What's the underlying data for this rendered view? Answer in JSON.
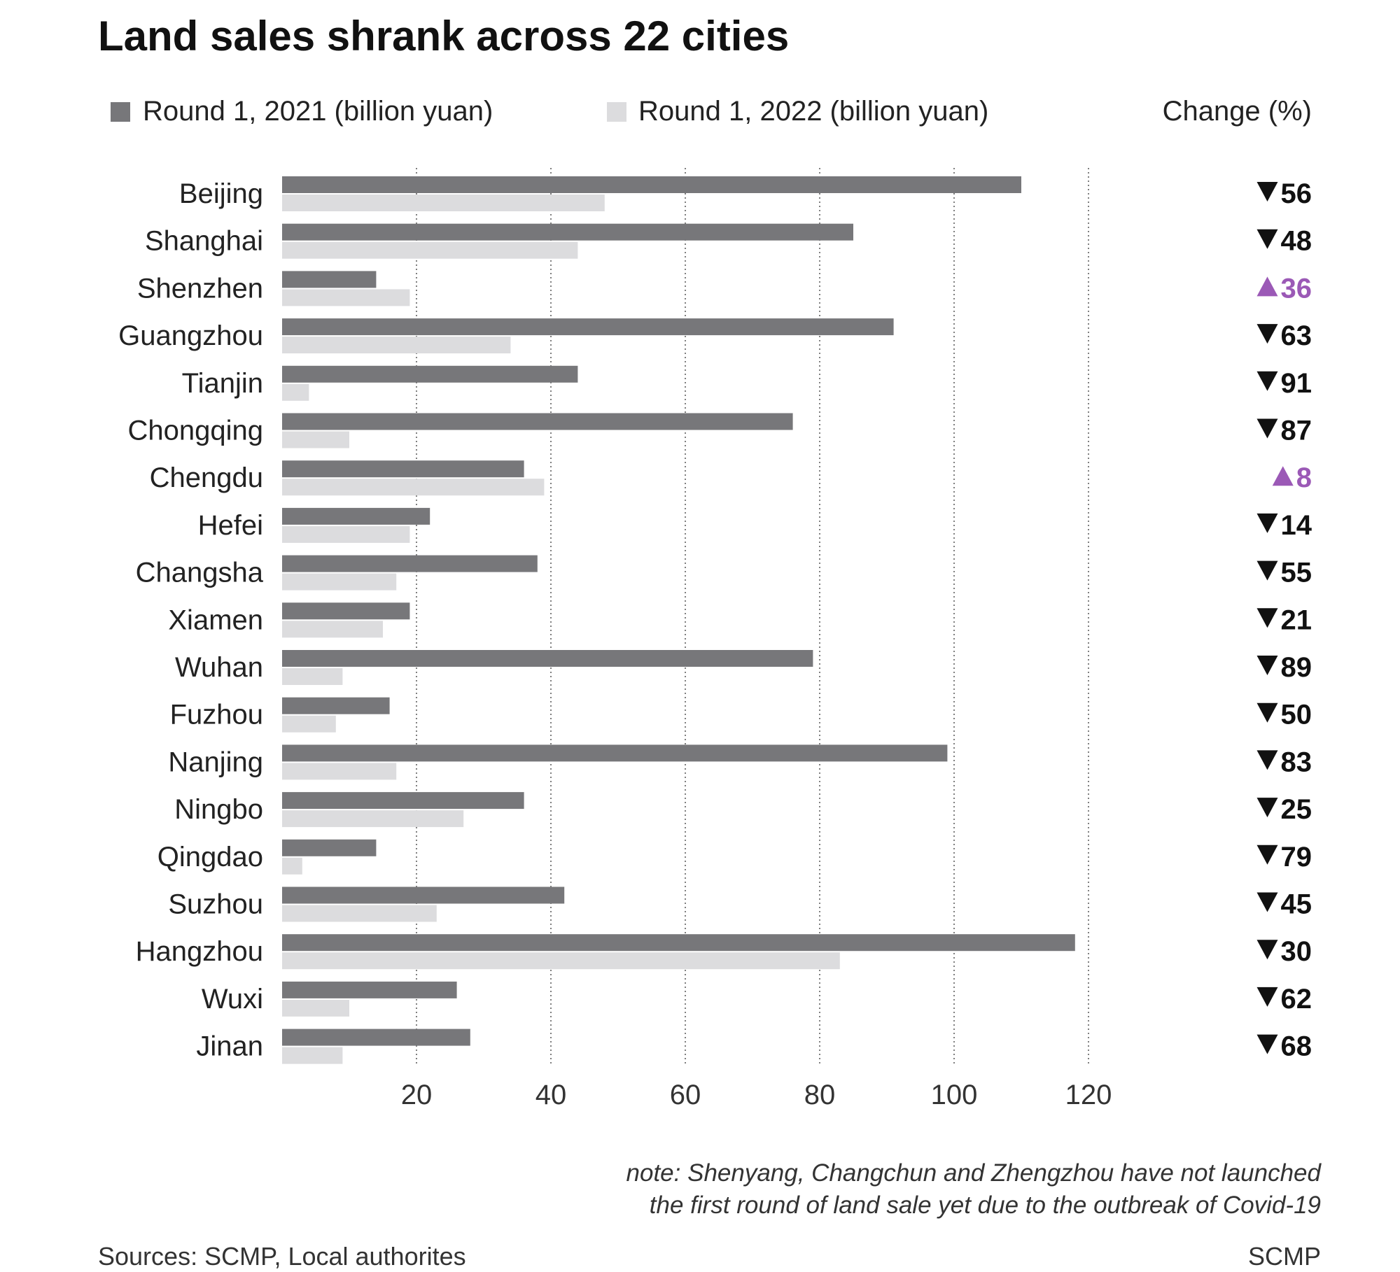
{
  "chart_data": {
    "type": "bar",
    "orientation": "horizontal",
    "title": "Land sales shrank across 22 cities",
    "categories": [
      "Beijing",
      "Shanghai",
      "Shenzhen",
      "Guangzhou",
      "Tianjin",
      "Chongqing",
      "Chengdu",
      "Hefei",
      "Changsha",
      "Xiamen",
      "Wuhan",
      "Fuzhou",
      "Nanjing",
      "Ningbo",
      "Qingdao",
      "Suzhou",
      "Hangzhou",
      "Wuxi",
      "Jinan"
    ],
    "series": [
      {
        "name": "Round 1, 2021 (billion yuan)",
        "color": "#77777a",
        "values": [
          110,
          85,
          14,
          91,
          44,
          76,
          36,
          22,
          38,
          19,
          79,
          16,
          99,
          36,
          14,
          42,
          118,
          26,
          28
        ]
      },
      {
        "name": "Round 1, 2022 (billion yuan)",
        "color": "#dcdcde",
        "values": [
          48,
          44,
          19,
          34,
          4,
          10,
          39,
          19,
          17,
          15,
          9,
          8,
          17,
          27,
          3,
          23,
          83,
          10,
          9
        ]
      }
    ],
    "change_header": "Change (%)",
    "change": [
      {
        "dir": "down",
        "value": "56"
      },
      {
        "dir": "down",
        "value": "48"
      },
      {
        "dir": "up",
        "value": "36"
      },
      {
        "dir": "down",
        "value": "63"
      },
      {
        "dir": "down",
        "value": "91"
      },
      {
        "dir": "down",
        "value": "87"
      },
      {
        "dir": "up",
        "value": "8"
      },
      {
        "dir": "down",
        "value": "14"
      },
      {
        "dir": "down",
        "value": "55"
      },
      {
        "dir": "down",
        "value": "21"
      },
      {
        "dir": "down",
        "value": "89"
      },
      {
        "dir": "down",
        "value": "50"
      },
      {
        "dir": "down",
        "value": "83"
      },
      {
        "dir": "down",
        "value": "25"
      },
      {
        "dir": "down",
        "value": "79"
      },
      {
        "dir": "down",
        "value": "45"
      },
      {
        "dir": "down",
        "value": "30"
      },
      {
        "dir": "down",
        "value": "62"
      },
      {
        "dir": "down",
        "value": "68"
      }
    ],
    "x_ticks": [
      20,
      40,
      60,
      80,
      100,
      120
    ],
    "xlim": [
      0,
      120
    ],
    "grid": "vertical dotted",
    "legend_position": "top-left",
    "up_color": "#9b59b6",
    "down_color": "#111111"
  },
  "note_lines": [
    "note: Shenyang, Changchun and Zhengzhou have not launched",
    "the first round of land sale yet due to the outbreak of Covid-19"
  ],
  "source": "Sources: SCMP, Local authorites",
  "credit": "SCMP"
}
